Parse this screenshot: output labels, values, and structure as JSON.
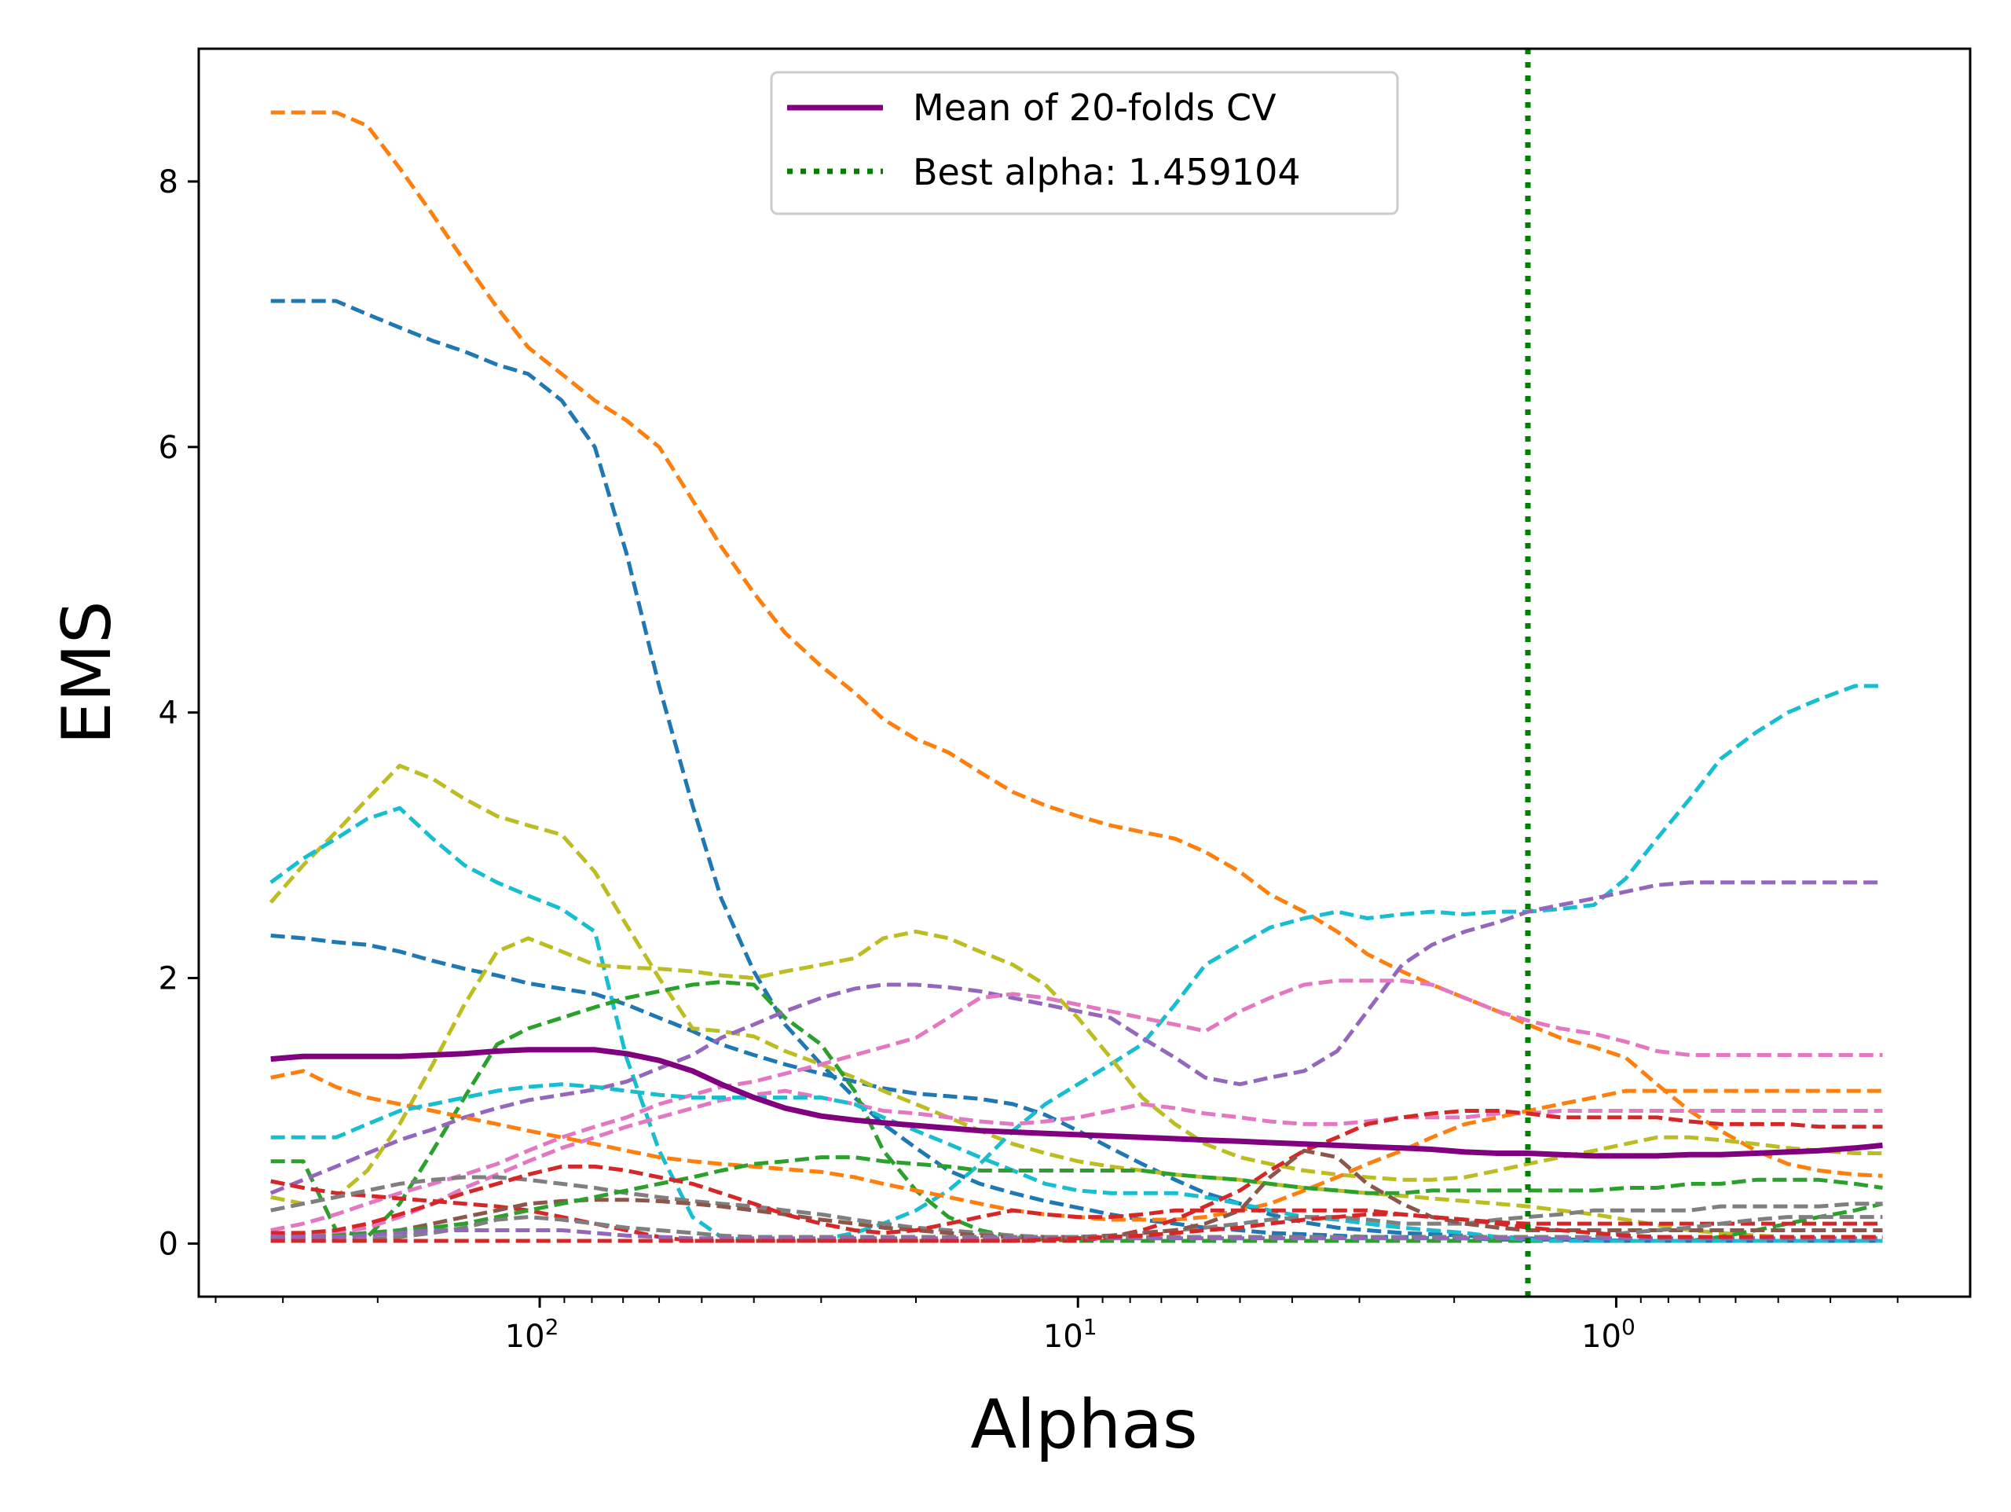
{
  "chart_data": {
    "type": "line",
    "xlabel": "Alphas",
    "ylabel": "EMS",
    "x_scale": "log",
    "x_reversed": true,
    "xlim": [
      430,
      0.22
    ],
    "ylim": [
      -0.4,
      9.0
    ],
    "grid": false,
    "legend_placement": "upper center",
    "x_ticks": [
      {
        "value": 100,
        "label": "10",
        "exp": "2"
      },
      {
        "value": 10,
        "label": "10",
        "exp": "1"
      },
      {
        "value": 1,
        "label": "10",
        "exp": "0"
      }
    ],
    "y_ticks": [
      0,
      2,
      4,
      6,
      8
    ],
    "x": [
      316,
      275,
      239,
      209,
      182,
      158,
      138,
      120,
      105,
      91,
      79,
      69,
      60,
      52,
      46,
      40,
      35,
      30,
      26,
      23,
      20,
      17.4,
      15.2,
      13.2,
      11.5,
      10,
      8.7,
      7.6,
      6.6,
      5.8,
      5.0,
      4.4,
      3.8,
      3.3,
      2.9,
      2.5,
      2.2,
      1.91,
      1.66,
      1.459,
      1.27,
      1.1,
      0.96,
      0.84,
      0.73,
      0.64,
      0.55,
      0.48,
      0.42,
      0.36,
      0.32
    ],
    "mean_series": {
      "name": "Mean of 20-folds CV",
      "color": "#800080",
      "values": [
        1.39,
        1.41,
        1.41,
        1.41,
        1.41,
        1.42,
        1.43,
        1.45,
        1.46,
        1.46,
        1.46,
        1.43,
        1.38,
        1.3,
        1.2,
        1.1,
        1.02,
        0.96,
        0.93,
        0.91,
        0.89,
        0.87,
        0.85,
        0.84,
        0.83,
        0.82,
        0.81,
        0.8,
        0.79,
        0.78,
        0.77,
        0.76,
        0.75,
        0.74,
        0.73,
        0.72,
        0.71,
        0.69,
        0.68,
        0.68,
        0.67,
        0.66,
        0.66,
        0.66,
        0.67,
        0.67,
        0.68,
        0.69,
        0.7,
        0.72,
        0.74
      ]
    },
    "best_alpha": {
      "label": "Best alpha: 1.459104",
      "value": 1.459104,
      "color": "#008000"
    },
    "fold_series": [
      {
        "color": "#ff7f0e",
        "values": [
          8.52,
          8.52,
          8.52,
          8.42,
          8.1,
          7.75,
          7.4,
          7.05,
          6.75,
          6.55,
          6.35,
          6.2,
          6.0,
          5.6,
          5.25,
          4.9,
          4.6,
          4.35,
          4.15,
          3.95,
          3.8,
          3.7,
          3.55,
          3.4,
          3.3,
          3.22,
          3.15,
          3.1,
          3.05,
          2.95,
          2.8,
          2.63,
          2.5,
          2.35,
          2.18,
          2.05,
          1.95,
          1.85,
          1.75,
          1.65,
          1.55,
          1.48,
          1.4,
          1.2,
          1.0,
          0.85,
          0.7,
          0.6,
          0.55,
          0.52,
          0.51
        ]
      },
      {
        "color": "#1f77b4",
        "values": [
          7.1,
          7.1,
          7.1,
          7.0,
          6.9,
          6.8,
          6.72,
          6.62,
          6.55,
          6.35,
          6.0,
          5.2,
          4.2,
          3.3,
          2.6,
          2.05,
          1.65,
          1.35,
          1.1,
          0.9,
          0.72,
          0.55,
          0.45,
          0.38,
          0.32,
          0.27,
          0.22,
          0.18,
          0.15,
          0.12,
          0.1,
          0.08,
          0.07,
          0.06,
          0.05,
          0.05,
          0.04,
          0.04,
          0.03,
          0.03,
          0.03,
          0.02,
          0.02,
          0.02,
          0.02,
          0.02,
          0.02,
          0.02,
          0.02,
          0.02,
          0.02
        ]
      },
      {
        "color": "#1f77b4",
        "values": [
          2.32,
          2.3,
          2.27,
          2.25,
          2.2,
          2.13,
          2.07,
          2.02,
          1.96,
          1.92,
          1.88,
          1.8,
          1.7,
          1.6,
          1.5,
          1.42,
          1.35,
          1.28,
          1.22,
          1.17,
          1.13,
          1.11,
          1.09,
          1.05,
          0.97,
          0.85,
          0.72,
          0.6,
          0.48,
          0.38,
          0.3,
          0.22,
          0.16,
          0.12,
          0.1,
          0.08,
          0.07,
          0.06,
          0.05,
          0.04,
          0.03,
          0.03,
          0.02,
          0.02,
          0.02,
          0.02,
          0.02,
          0.02,
          0.02,
          0.02,
          0.02
        ]
      },
      {
        "color": "#bcbd22",
        "values": [
          2.57,
          2.85,
          3.1,
          3.35,
          3.6,
          3.5,
          3.35,
          3.22,
          3.15,
          3.08,
          2.8,
          2.4,
          2.0,
          1.62,
          1.6,
          1.56,
          1.45,
          1.35,
          1.25,
          1.15,
          1.05,
          0.95,
          0.85,
          0.75,
          0.68,
          0.62,
          0.58,
          0.55,
          0.52,
          0.5,
          0.48,
          0.45,
          0.42,
          0.4,
          0.38,
          0.36,
          0.34,
          0.32,
          0.3,
          0.28,
          0.25,
          0.22,
          0.18,
          0.14,
          0.1,
          0.08,
          0.06,
          0.05,
          0.05,
          0.04,
          0.04
        ]
      },
      {
        "color": "#17becf",
        "values": [
          2.72,
          2.9,
          3.05,
          3.2,
          3.28,
          3.05,
          2.85,
          2.72,
          2.62,
          2.52,
          2.35,
          1.4,
          0.7,
          0.2,
          0.05,
          0.02,
          0.02,
          0.03,
          0.08,
          0.15,
          0.25,
          0.4,
          0.6,
          0.85,
          1.05,
          1.2,
          1.35,
          1.5,
          1.8,
          2.1,
          2.25,
          2.38,
          2.45,
          2.5,
          2.45,
          2.48,
          2.5,
          2.48,
          2.5,
          2.5,
          2.52,
          2.55,
          2.75,
          3.05,
          3.35,
          3.65,
          3.85,
          4.0,
          4.1,
          4.2,
          4.2
        ]
      },
      {
        "color": "#bcbd22",
        "values": [
          0.35,
          0.3,
          0.35,
          0.55,
          0.9,
          1.35,
          1.8,
          2.2,
          2.3,
          2.2,
          2.1,
          2.08,
          2.07,
          2.05,
          2.02,
          2.0,
          2.05,
          2.1,
          2.15,
          2.3,
          2.35,
          2.3,
          2.2,
          2.1,
          1.95,
          1.7,
          1.4,
          1.1,
          0.9,
          0.75,
          0.65,
          0.6,
          0.55,
          0.52,
          0.5,
          0.48,
          0.48,
          0.5,
          0.55,
          0.6,
          0.65,
          0.7,
          0.75,
          0.8,
          0.8,
          0.78,
          0.75,
          0.72,
          0.7,
          0.68,
          0.68
        ]
      },
      {
        "color": "#2ca02c",
        "values": [
          0.62,
          0.62,
          0.1,
          0.05,
          0.3,
          0.7,
          1.1,
          1.5,
          1.62,
          1.7,
          1.78,
          1.85,
          1.9,
          1.95,
          1.97,
          1.95,
          1.7,
          1.5,
          1.15,
          0.7,
          0.4,
          0.2,
          0.1,
          0.05,
          0.03,
          0.02,
          0.02,
          0.02,
          0.02,
          0.02,
          0.02,
          0.02,
          0.02,
          0.02,
          0.02,
          0.02,
          0.02,
          0.02,
          0.02,
          0.02,
          0.02,
          0.02,
          0.02,
          0.02,
          0.02,
          0.05,
          0.1,
          0.15,
          0.2,
          0.25,
          0.3
        ]
      },
      {
        "color": "#9467bd",
        "values": [
          0.38,
          0.48,
          0.58,
          0.68,
          0.78,
          0.86,
          0.95,
          1.02,
          1.08,
          1.12,
          1.16,
          1.22,
          1.32,
          1.42,
          1.55,
          1.65,
          1.75,
          1.85,
          1.92,
          1.95,
          1.95,
          1.93,
          1.9,
          1.85,
          1.8,
          1.75,
          1.7,
          1.55,
          1.4,
          1.25,
          1.2,
          1.25,
          1.3,
          1.45,
          1.75,
          2.1,
          2.25,
          2.35,
          2.42,
          2.5,
          2.55,
          2.6,
          2.65,
          2.7,
          2.72,
          2.72,
          2.72,
          2.72,
          2.72,
          2.72,
          2.72
        ]
      },
      {
        "color": "#e377c2",
        "values": [
          0.1,
          0.15,
          0.22,
          0.3,
          0.38,
          0.45,
          0.52,
          0.6,
          0.7,
          0.8,
          0.88,
          0.95,
          1.05,
          1.12,
          1.18,
          1.22,
          1.28,
          1.35,
          1.42,
          1.48,
          1.55,
          1.7,
          1.85,
          1.88,
          1.85,
          1.8,
          1.75,
          1.7,
          1.65,
          1.6,
          1.75,
          1.85,
          1.95,
          1.98,
          1.98,
          1.98,
          1.95,
          1.85,
          1.75,
          1.68,
          1.62,
          1.58,
          1.52,
          1.45,
          1.42,
          1.42,
          1.42,
          1.42,
          1.42,
          1.42,
          1.42
        ]
      },
      {
        "color": "#e377c2",
        "values": [
          0.05,
          0.06,
          0.08,
          0.12,
          0.2,
          0.3,
          0.42,
          0.52,
          0.62,
          0.72,
          0.8,
          0.88,
          0.95,
          1.02,
          1.08,
          1.12,
          1.15,
          1.1,
          1.05,
          1.0,
          0.98,
          0.95,
          0.92,
          0.9,
          0.92,
          0.95,
          1.0,
          1.05,
          1.02,
          0.98,
          0.95,
          0.92,
          0.9,
          0.9,
          0.92,
          0.95,
          0.95,
          0.95,
          0.98,
          0.98,
          1.0,
          1.0,
          1.0,
          1.0,
          1.0,
          1.0,
          1.0,
          1.0,
          1.0,
          1.0,
          1.0
        ]
      },
      {
        "color": "#ff7f0e",
        "values": [
          1.25,
          1.3,
          1.18,
          1.1,
          1.05,
          1.0,
          0.95,
          0.9,
          0.85,
          0.8,
          0.75,
          0.7,
          0.65,
          0.62,
          0.6,
          0.58,
          0.56,
          0.54,
          0.5,
          0.45,
          0.4,
          0.35,
          0.3,
          0.25,
          0.22,
          0.2,
          0.18,
          0.18,
          0.18,
          0.2,
          0.25,
          0.3,
          0.4,
          0.5,
          0.6,
          0.7,
          0.8,
          0.9,
          0.95,
          1.0,
          1.05,
          1.1,
          1.15,
          1.15,
          1.15,
          1.15,
          1.15,
          1.15,
          1.15,
          1.15,
          1.15
        ]
      },
      {
        "color": "#17becf",
        "values": [
          0.8,
          0.8,
          0.8,
          0.9,
          1.0,
          1.05,
          1.1,
          1.15,
          1.18,
          1.2,
          1.18,
          1.15,
          1.12,
          1.1,
          1.1,
          1.1,
          1.1,
          1.1,
          1.05,
          0.95,
          0.85,
          0.75,
          0.65,
          0.55,
          0.45,
          0.4,
          0.38,
          0.38,
          0.38,
          0.35,
          0.3,
          0.25,
          0.2,
          0.18,
          0.15,
          0.12,
          0.1,
          0.08,
          0.05,
          0.03,
          0.02,
          0.02,
          0.02,
          0.02,
          0.02,
          0.02,
          0.02,
          0.02,
          0.02,
          0.02,
          0.02
        ]
      },
      {
        "color": "#d62728",
        "values": [
          0.47,
          0.42,
          0.38,
          0.36,
          0.34,
          0.32,
          0.3,
          0.28,
          0.25,
          0.2,
          0.15,
          0.1,
          0.05,
          0.02,
          0.02,
          0.02,
          0.02,
          0.02,
          0.02,
          0.02,
          0.02,
          0.02,
          0.02,
          0.02,
          0.02,
          0.02,
          0.05,
          0.1,
          0.18,
          0.28,
          0.4,
          0.55,
          0.7,
          0.8,
          0.9,
          0.95,
          0.98,
          1.0,
          1.0,
          0.98,
          0.95,
          0.95,
          0.95,
          0.95,
          0.92,
          0.9,
          0.9,
          0.9,
          0.88,
          0.88,
          0.88
        ]
      },
      {
        "color": "#7f7f7f",
        "values": [
          0.25,
          0.3,
          0.35,
          0.4,
          0.45,
          0.48,
          0.5,
          0.5,
          0.48,
          0.45,
          0.42,
          0.38,
          0.35,
          0.32,
          0.3,
          0.28,
          0.25,
          0.22,
          0.18,
          0.15,
          0.12,
          0.1,
          0.08,
          0.06,
          0.05,
          0.05,
          0.06,
          0.08,
          0.1,
          0.12,
          0.15,
          0.18,
          0.2,
          0.2,
          0.18,
          0.15,
          0.15,
          0.15,
          0.18,
          0.2,
          0.22,
          0.25,
          0.25,
          0.25,
          0.25,
          0.28,
          0.28,
          0.28,
          0.28,
          0.3,
          0.3
        ]
      },
      {
        "color": "#8c564b",
        "values": [
          0.05,
          0.05,
          0.06,
          0.08,
          0.1,
          0.15,
          0.2,
          0.25,
          0.3,
          0.32,
          0.33,
          0.33,
          0.32,
          0.3,
          0.28,
          0.25,
          0.22,
          0.18,
          0.15,
          0.12,
          0.1,
          0.08,
          0.06,
          0.05,
          0.05,
          0.05,
          0.06,
          0.08,
          0.1,
          0.15,
          0.25,
          0.5,
          0.7,
          0.65,
          0.45,
          0.3,
          0.2,
          0.15,
          0.12,
          0.1,
          0.1,
          0.1,
          0.1,
          0.1,
          0.1,
          0.1,
          0.1,
          0.1,
          0.1,
          0.1,
          0.1
        ]
      },
      {
        "color": "#2ca02c",
        "values": [
          0.05,
          0.05,
          0.06,
          0.08,
          0.1,
          0.12,
          0.15,
          0.2,
          0.25,
          0.3,
          0.35,
          0.4,
          0.45,
          0.5,
          0.55,
          0.6,
          0.62,
          0.65,
          0.65,
          0.62,
          0.6,
          0.58,
          0.55,
          0.55,
          0.55,
          0.55,
          0.55,
          0.55,
          0.52,
          0.5,
          0.48,
          0.45,
          0.42,
          0.4,
          0.38,
          0.38,
          0.4,
          0.4,
          0.4,
          0.4,
          0.4,
          0.4,
          0.42,
          0.42,
          0.45,
          0.45,
          0.48,
          0.48,
          0.48,
          0.45,
          0.42
        ]
      },
      {
        "color": "#d62728",
        "values": [
          0.08,
          0.08,
          0.1,
          0.15,
          0.22,
          0.3,
          0.38,
          0.45,
          0.52,
          0.58,
          0.58,
          0.55,
          0.5,
          0.45,
          0.38,
          0.3,
          0.22,
          0.15,
          0.1,
          0.08,
          0.1,
          0.15,
          0.2,
          0.25,
          0.22,
          0.2,
          0.2,
          0.22,
          0.25,
          0.25,
          0.25,
          0.25,
          0.25,
          0.25,
          0.25,
          0.22,
          0.2,
          0.18,
          0.16,
          0.15,
          0.15,
          0.15,
          0.15,
          0.15,
          0.15,
          0.15,
          0.15,
          0.15,
          0.15,
          0.15,
          0.15
        ]
      },
      {
        "color": "#7f7f7f",
        "values": [
          0.02,
          0.02,
          0.02,
          0.03,
          0.05,
          0.08,
          0.12,
          0.18,
          0.2,
          0.18,
          0.15,
          0.12,
          0.1,
          0.08,
          0.06,
          0.05,
          0.05,
          0.05,
          0.05,
          0.05,
          0.05,
          0.05,
          0.05,
          0.05,
          0.05,
          0.05,
          0.05,
          0.05,
          0.05,
          0.05,
          0.05,
          0.05,
          0.05,
          0.05,
          0.05,
          0.05,
          0.05,
          0.05,
          0.05,
          0.05,
          0.05,
          0.05,
          0.08,
          0.1,
          0.12,
          0.15,
          0.18,
          0.2,
          0.2,
          0.2,
          0.2
        ]
      },
      {
        "color": "#9467bd",
        "values": [
          0.05,
          0.05,
          0.05,
          0.06,
          0.08,
          0.1,
          0.1,
          0.1,
          0.1,
          0.1,
          0.08,
          0.06,
          0.05,
          0.04,
          0.04,
          0.04,
          0.04,
          0.04,
          0.04,
          0.04,
          0.04,
          0.04,
          0.04,
          0.04,
          0.04,
          0.04,
          0.04,
          0.04,
          0.04,
          0.04,
          0.04,
          0.04,
          0.04,
          0.04,
          0.04,
          0.04,
          0.04,
          0.04,
          0.04,
          0.04,
          0.04,
          0.04,
          0.04,
          0.04,
          0.04,
          0.04,
          0.04,
          0.04,
          0.04,
          0.04,
          0.04
        ]
      },
      {
        "color": "#d62728",
        "values": [
          0.02,
          0.02,
          0.02,
          0.02,
          0.02,
          0.02,
          0.02,
          0.02,
          0.02,
          0.02,
          0.02,
          0.02,
          0.02,
          0.02,
          0.02,
          0.02,
          0.02,
          0.02,
          0.02,
          0.02,
          0.02,
          0.02,
          0.02,
          0.02,
          0.03,
          0.04,
          0.05,
          0.06,
          0.08,
          0.1,
          0.12,
          0.15,
          0.18,
          0.2,
          0.22,
          0.22,
          0.2,
          0.18,
          0.15,
          0.12,
          0.1,
          0.08,
          0.06,
          0.05,
          0.05,
          0.05,
          0.05,
          0.05,
          0.05,
          0.05,
          0.05
        ]
      }
    ]
  }
}
